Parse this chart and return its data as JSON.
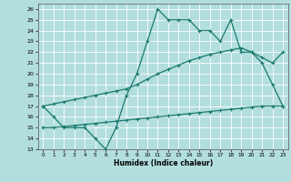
{
  "xlabel": "Humidex (Indice chaleur)",
  "background_color": "#b2dede",
  "grid_color": "#c8e8e8",
  "line_color": "#1a7a6e",
  "xlim": [
    -0.5,
    23.5
  ],
  "ylim": [
    13,
    26.5
  ],
  "xticks": [
    0,
    1,
    2,
    3,
    4,
    5,
    6,
    7,
    8,
    9,
    10,
    11,
    12,
    13,
    14,
    15,
    16,
    17,
    18,
    19,
    20,
    21,
    22,
    23
  ],
  "yticks": [
    13,
    14,
    15,
    16,
    17,
    18,
    19,
    20,
    21,
    22,
    23,
    24,
    25,
    26
  ],
  "line1_x": [
    0,
    1,
    2,
    3,
    4,
    5,
    6,
    7,
    8,
    9,
    10,
    11,
    12,
    13,
    14,
    15,
    16,
    17,
    18,
    19,
    20,
    21,
    22,
    23
  ],
  "line1_y": [
    17,
    16,
    15,
    15,
    15,
    14,
    13,
    15,
    18,
    20,
    23,
    26,
    25,
    25,
    25,
    24,
    24,
    23,
    25,
    22,
    22,
    21,
    19,
    17
  ],
  "line2_x": [
    0,
    1,
    2,
    3,
    4,
    5,
    6,
    7,
    8,
    9,
    10,
    11,
    12,
    13,
    14,
    15,
    16,
    17,
    18,
    19,
    20,
    21,
    22,
    23
  ],
  "line2_y": [
    17,
    17.2,
    17.4,
    17.6,
    17.8,
    18.0,
    18.2,
    18.4,
    18.6,
    19.0,
    19.5,
    20.0,
    20.4,
    20.8,
    21.2,
    21.5,
    21.8,
    22.0,
    22.2,
    22.4,
    22.0,
    21.5,
    21.0,
    22.0
  ],
  "line3_x": [
    0,
    1,
    2,
    3,
    4,
    5,
    6,
    7,
    8,
    9,
    10,
    11,
    12,
    13,
    14,
    15,
    16,
    17,
    18,
    19,
    20,
    21,
    22,
    23
  ],
  "line3_y": [
    15,
    15.0,
    15.1,
    15.2,
    15.3,
    15.4,
    15.5,
    15.6,
    15.7,
    15.8,
    15.9,
    16.0,
    16.1,
    16.2,
    16.3,
    16.4,
    16.5,
    16.6,
    16.7,
    16.8,
    16.9,
    17.0,
    17.0,
    17.0
  ],
  "markersize": 2.5,
  "linewidth": 0.9
}
